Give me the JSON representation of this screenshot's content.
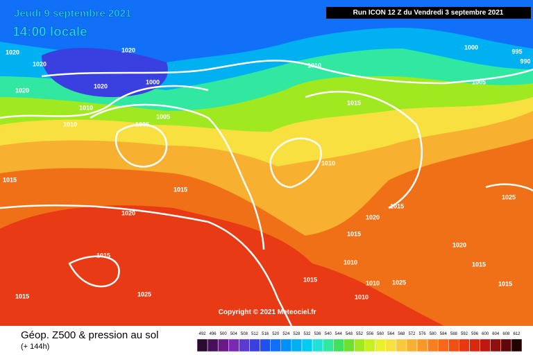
{
  "map": {
    "date": "Jeudi 9 septembre 2021",
    "time": "14:00 locale",
    "run": "Run ICON 12 Z du Vendredi 3 septembre 2021",
    "copyright": "Copyright © 2021 Meteociel.fr",
    "isobar_labels": [
      "1020",
      "1020",
      "1020",
      "1020",
      "1000",
      "1000",
      "995",
      "990",
      "1010",
      "1010",
      "1010",
      "1010",
      "1010",
      "1010",
      "1010",
      "1005",
      "1005",
      "1005",
      "1015",
      "1015",
      "1015",
      "1015",
      "1015",
      "1015",
      "1015",
      "1015",
      "1015",
      "1015",
      "1025",
      "1025",
      "1025",
      "1020",
      "1020",
      "1020",
      "1020"
    ]
  },
  "footer": {
    "title": "Géop. Z500 & pression au sol",
    "lead": "(+ 144h)"
  },
  "scale": {
    "labels": [
      492,
      496,
      500,
      504,
      508,
      512,
      516,
      520,
      524,
      528,
      532,
      536,
      540,
      544,
      548,
      552,
      556,
      560,
      564,
      568,
      572,
      576,
      580,
      584,
      588,
      592,
      596,
      600,
      604,
      608,
      612
    ],
    "colors": [
      "#2a0a30",
      "#48105a",
      "#6a1a86",
      "#7a2ab0",
      "#5a3ad0",
      "#3a40e0",
      "#2050f0",
      "#1070f8",
      "#0090f8",
      "#00b0f0",
      "#00ccf0",
      "#20e0d8",
      "#30e8a0",
      "#40e060",
      "#70e030",
      "#a0e820",
      "#c8f020",
      "#e8f030",
      "#f8e040",
      "#f8c840",
      "#f8b030",
      "#f89828",
      "#f88020",
      "#f86818",
      "#f05014",
      "#e83810",
      "#d82810",
      "#c01810",
      "#901010",
      "#600808",
      "#200000"
    ]
  }
}
